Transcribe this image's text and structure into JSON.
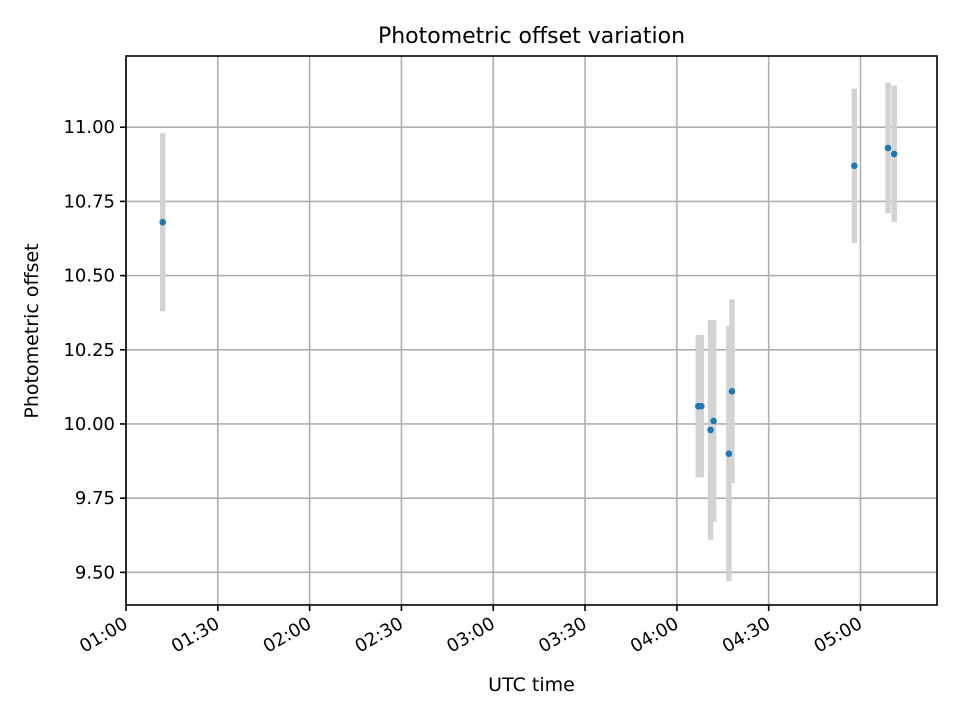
{
  "chart_data": {
    "type": "scatter",
    "title": "Photometric offset variation",
    "xlabel": "UTC time",
    "ylabel": "Photometric offset",
    "xlim": [
      "01:00",
      "05:25"
    ],
    "ylim": [
      9.39,
      11.24
    ],
    "grid": true,
    "x_ticks": [
      "01:00",
      "01:30",
      "02:00",
      "02:30",
      "03:00",
      "03:30",
      "04:00",
      "04:30",
      "05:00"
    ],
    "y_ticks": [
      "9.50",
      "9.75",
      "10.00",
      "10.25",
      "10.50",
      "10.75",
      "11.00"
    ],
    "series": [
      {
        "name": "Photometric offset",
        "marker_color": "#1f77b4",
        "errorbar_color": "#d3d3d3",
        "points": [
          {
            "t": "01:12",
            "y": 10.68,
            "yerr": 0.3
          },
          {
            "t": "04:07",
            "y": 10.06,
            "yerr": 0.24
          },
          {
            "t": "04:08",
            "y": 10.06,
            "yerr": 0.24
          },
          {
            "t": "04:11",
            "y": 9.98,
            "yerr": 0.37
          },
          {
            "t": "04:12",
            "y": 10.01,
            "yerr": 0.34
          },
          {
            "t": "04:17",
            "y": 9.9,
            "yerr": 0.43
          },
          {
            "t": "04:18",
            "y": 10.11,
            "yerr": 0.31
          },
          {
            "t": "04:58",
            "y": 10.87,
            "yerr": 0.26
          },
          {
            "t": "05:09",
            "y": 10.93,
            "yerr": 0.22
          },
          {
            "t": "05:11",
            "y": 10.91,
            "yerr": 0.23
          }
        ]
      }
    ]
  }
}
